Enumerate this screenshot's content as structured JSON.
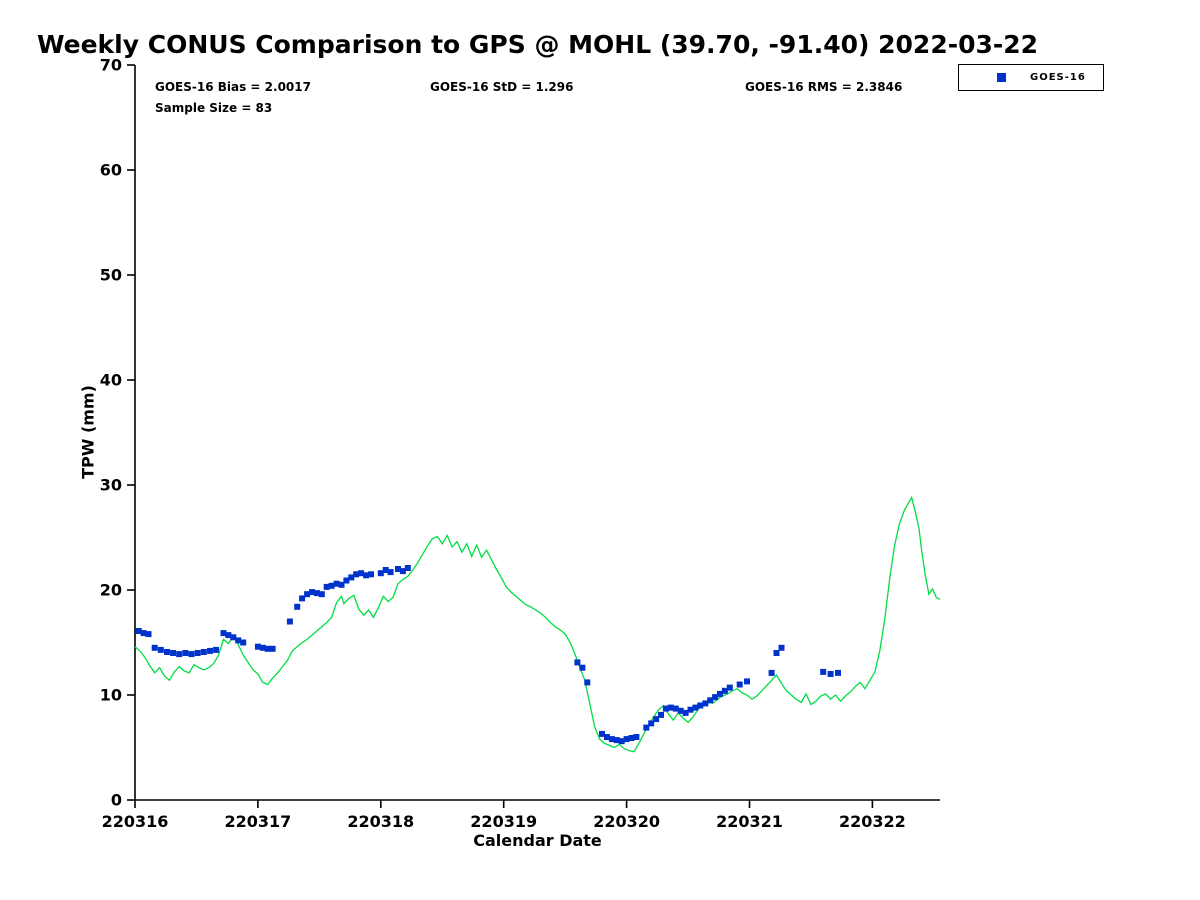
{
  "legend": {
    "items": [
      {
        "label": "GOES-16",
        "marker": "square",
        "color": "#0033cc"
      }
    ]
  },
  "annotations": {
    "bias": "GOES-16 Bias = 2.0017",
    "std": "GOES-16 StD = 1.296",
    "rms": "GOES-16 RMS = 2.3846",
    "sample_size": "Sample Size = 83"
  },
  "chart_data": {
    "type": "scatter",
    "title": "Weekly CONUS Comparison to GPS @ MOHL (39.70, -91.40) 2022-03-22",
    "xlabel": "Calendar Date",
    "ylabel": "TPW (mm)",
    "xlim": [
      220316,
      220322.55
    ],
    "ylim": [
      0,
      70
    ],
    "xticks": [
      220316,
      220317,
      220318,
      220319,
      220320,
      220321,
      220322
    ],
    "xtick_labels": [
      "220316",
      "220317",
      "220318",
      "220319",
      "220320",
      "220321",
      "220322"
    ],
    "yticks": [
      0,
      10,
      20,
      30,
      40,
      50,
      60,
      70
    ],
    "ytick_labels": [
      "0",
      "10",
      "20",
      "30",
      "40",
      "50",
      "60",
      "70"
    ],
    "grid": false,
    "legend_position": "top-right-outside",
    "stats": {
      "bias": 2.0017,
      "std": 1.296,
      "rms": 2.3846,
      "sample_size": 83
    },
    "series": [
      {
        "name": "GPS",
        "mode": "line",
        "color": "#00dd44",
        "points": [
          [
            220316.0,
            14.6
          ],
          [
            220316.04,
            14.2
          ],
          [
            220316.08,
            13.6
          ],
          [
            220316.12,
            12.8
          ],
          [
            220316.16,
            12.1
          ],
          [
            220316.2,
            12.6
          ],
          [
            220316.24,
            11.8
          ],
          [
            220316.28,
            11.4
          ],
          [
            220316.32,
            12.2
          ],
          [
            220316.36,
            12.7
          ],
          [
            220316.4,
            12.3
          ],
          [
            220316.44,
            12.1
          ],
          [
            220316.48,
            12.9
          ],
          [
            220316.52,
            12.6
          ],
          [
            220316.56,
            12.4
          ],
          [
            220316.6,
            12.6
          ],
          [
            220316.64,
            13.0
          ],
          [
            220316.68,
            13.8
          ],
          [
            220316.72,
            15.3
          ],
          [
            220316.76,
            14.9
          ],
          [
            220316.8,
            15.6
          ],
          [
            220316.84,
            14.8
          ],
          [
            220316.88,
            13.8
          ],
          [
            220316.92,
            13.1
          ],
          [
            220316.96,
            12.4
          ],
          [
            220317.0,
            12.0
          ],
          [
            220317.04,
            11.2
          ],
          [
            220317.08,
            11.0
          ],
          [
            220317.12,
            11.6
          ],
          [
            220317.16,
            12.1
          ],
          [
            220317.2,
            12.7
          ],
          [
            220317.24,
            13.3
          ],
          [
            220317.28,
            14.2
          ],
          [
            220317.32,
            14.6
          ],
          [
            220317.36,
            15.0
          ],
          [
            220317.4,
            15.3
          ],
          [
            220317.44,
            15.7
          ],
          [
            220317.48,
            16.1
          ],
          [
            220317.52,
            16.5
          ],
          [
            220317.56,
            16.9
          ],
          [
            220317.6,
            17.4
          ],
          [
            220317.64,
            18.8
          ],
          [
            220317.68,
            19.4
          ],
          [
            220317.7,
            18.7
          ],
          [
            220317.74,
            19.2
          ],
          [
            220317.78,
            19.5
          ],
          [
            220317.82,
            18.2
          ],
          [
            220317.86,
            17.6
          ],
          [
            220317.9,
            18.1
          ],
          [
            220317.94,
            17.4
          ],
          [
            220317.98,
            18.3
          ],
          [
            220318.02,
            19.4
          ],
          [
            220318.06,
            18.9
          ],
          [
            220318.1,
            19.3
          ],
          [
            220318.14,
            20.6
          ],
          [
            220318.18,
            21.0
          ],
          [
            220318.22,
            21.3
          ],
          [
            220318.26,
            21.9
          ],
          [
            220318.3,
            22.6
          ],
          [
            220318.34,
            23.4
          ],
          [
            220318.38,
            24.2
          ],
          [
            220318.42,
            24.9
          ],
          [
            220318.46,
            25.1
          ],
          [
            220318.5,
            24.4
          ],
          [
            220318.54,
            25.2
          ],
          [
            220318.58,
            24.1
          ],
          [
            220318.62,
            24.6
          ],
          [
            220318.66,
            23.6
          ],
          [
            220318.7,
            24.4
          ],
          [
            220318.74,
            23.2
          ],
          [
            220318.78,
            24.3
          ],
          [
            220318.82,
            23.1
          ],
          [
            220318.86,
            23.8
          ],
          [
            220318.9,
            22.9
          ],
          [
            220318.94,
            22.0
          ],
          [
            220318.98,
            21.2
          ],
          [
            220319.02,
            20.3
          ],
          [
            220319.06,
            19.8
          ],
          [
            220319.1,
            19.4
          ],
          [
            220319.14,
            19.0
          ],
          [
            220319.18,
            18.6
          ],
          [
            220319.22,
            18.4
          ],
          [
            220319.26,
            18.1
          ],
          [
            220319.3,
            17.8
          ],
          [
            220319.34,
            17.4
          ],
          [
            220319.38,
            16.9
          ],
          [
            220319.42,
            16.5
          ],
          [
            220319.46,
            16.2
          ],
          [
            220319.5,
            15.8
          ],
          [
            220319.54,
            15.0
          ],
          [
            220319.58,
            13.9
          ],
          [
            220319.62,
            12.6
          ],
          [
            220319.66,
            11.4
          ],
          [
            220319.7,
            9.2
          ],
          [
            220319.74,
            7.0
          ],
          [
            220319.78,
            5.8
          ],
          [
            220319.82,
            5.4
          ],
          [
            220319.86,
            5.2
          ],
          [
            220319.9,
            5.0
          ],
          [
            220319.94,
            5.3
          ],
          [
            220319.98,
            4.9
          ],
          [
            220320.02,
            4.7
          ],
          [
            220320.06,
            4.6
          ],
          [
            220320.1,
            5.4
          ],
          [
            220320.14,
            6.3
          ],
          [
            220320.18,
            7.2
          ],
          [
            220320.22,
            7.9
          ],
          [
            220320.26,
            8.6
          ],
          [
            220320.3,
            9.0
          ],
          [
            220320.34,
            8.2
          ],
          [
            220320.38,
            7.6
          ],
          [
            220320.42,
            8.3
          ],
          [
            220320.46,
            7.8
          ],
          [
            220320.5,
            7.4
          ],
          [
            220320.54,
            7.9
          ],
          [
            220320.58,
            8.6
          ],
          [
            220320.62,
            9.1
          ],
          [
            220320.66,
            9.4
          ],
          [
            220320.7,
            9.2
          ],
          [
            220320.74,
            9.6
          ],
          [
            220320.78,
            9.9
          ],
          [
            220320.82,
            10.1
          ],
          [
            220320.86,
            10.4
          ],
          [
            220320.9,
            10.6
          ],
          [
            220320.94,
            10.2
          ],
          [
            220320.98,
            10.0
          ],
          [
            220321.02,
            9.6
          ],
          [
            220321.06,
            9.9
          ],
          [
            220321.1,
            10.4
          ],
          [
            220321.14,
            10.9
          ],
          [
            220321.18,
            11.4
          ],
          [
            220321.22,
            11.9
          ],
          [
            220321.26,
            11.1
          ],
          [
            220321.3,
            10.4
          ],
          [
            220321.34,
            10.0
          ],
          [
            220321.38,
            9.6
          ],
          [
            220321.42,
            9.3
          ],
          [
            220321.46,
            10.1
          ],
          [
            220321.5,
            9.1
          ],
          [
            220321.54,
            9.4
          ],
          [
            220321.58,
            9.9
          ],
          [
            220321.62,
            10.1
          ],
          [
            220321.66,
            9.6
          ],
          [
            220321.7,
            10.0
          ],
          [
            220321.74,
            9.4
          ],
          [
            220321.78,
            9.9
          ],
          [
            220321.82,
            10.3
          ],
          [
            220321.86,
            10.8
          ],
          [
            220321.9,
            11.2
          ],
          [
            220321.94,
            10.6
          ],
          [
            220321.98,
            11.4
          ],
          [
            220322.02,
            12.2
          ],
          [
            220322.06,
            14.2
          ],
          [
            220322.1,
            17.2
          ],
          [
            220322.14,
            21.0
          ],
          [
            220322.18,
            24.2
          ],
          [
            220322.22,
            26.3
          ],
          [
            220322.26,
            27.6
          ],
          [
            220322.29,
            28.2
          ],
          [
            220322.32,
            28.8
          ],
          [
            220322.35,
            27.4
          ],
          [
            220322.38,
            25.8
          ],
          [
            220322.4,
            23.8
          ],
          [
            220322.43,
            21.4
          ],
          [
            220322.46,
            19.6
          ],
          [
            220322.49,
            20.1
          ],
          [
            220322.52,
            19.3
          ],
          [
            220322.55,
            19.1
          ]
        ]
      },
      {
        "name": "GOES-16",
        "mode": "markers",
        "marker": "square",
        "color": "#0033cc",
        "points": [
          [
            220316.03,
            16.1
          ],
          [
            220316.07,
            15.9
          ],
          [
            220316.11,
            15.8
          ],
          [
            220316.16,
            14.5
          ],
          [
            220316.21,
            14.3
          ],
          [
            220316.26,
            14.1
          ],
          [
            220316.31,
            14.0
          ],
          [
            220316.36,
            13.9
          ],
          [
            220316.41,
            14.0
          ],
          [
            220316.46,
            13.9
          ],
          [
            220316.51,
            14.0
          ],
          [
            220316.56,
            14.1
          ],
          [
            220316.61,
            14.2
          ],
          [
            220316.66,
            14.3
          ],
          [
            220316.72,
            15.9
          ],
          [
            220316.76,
            15.7
          ],
          [
            220316.8,
            15.5
          ],
          [
            220316.84,
            15.2
          ],
          [
            220316.88,
            15.0
          ],
          [
            220317.0,
            14.6
          ],
          [
            220317.04,
            14.5
          ],
          [
            220317.08,
            14.4
          ],
          [
            220317.12,
            14.4
          ],
          [
            220317.26,
            17.0
          ],
          [
            220317.32,
            18.4
          ],
          [
            220317.36,
            19.2
          ],
          [
            220317.4,
            19.6
          ],
          [
            220317.44,
            19.8
          ],
          [
            220317.48,
            19.7
          ],
          [
            220317.52,
            19.6
          ],
          [
            220317.56,
            20.3
          ],
          [
            220317.6,
            20.4
          ],
          [
            220317.64,
            20.6
          ],
          [
            220317.68,
            20.5
          ],
          [
            220317.72,
            20.9
          ],
          [
            220317.76,
            21.2
          ],
          [
            220317.8,
            21.5
          ],
          [
            220317.84,
            21.6
          ],
          [
            220317.88,
            21.4
          ],
          [
            220317.92,
            21.5
          ],
          [
            220318.0,
            21.6
          ],
          [
            220318.04,
            21.9
          ],
          [
            220318.08,
            21.7
          ],
          [
            220318.14,
            22.0
          ],
          [
            220318.18,
            21.8
          ],
          [
            220318.22,
            22.1
          ],
          [
            220319.6,
            13.1
          ],
          [
            220319.64,
            12.6
          ],
          [
            220319.68,
            11.2
          ],
          [
            220319.8,
            6.3
          ],
          [
            220319.84,
            6.0
          ],
          [
            220319.88,
            5.8
          ],
          [
            220319.92,
            5.7
          ],
          [
            220319.96,
            5.6
          ],
          [
            220320.0,
            5.8
          ],
          [
            220320.04,
            5.9
          ],
          [
            220320.08,
            6.0
          ],
          [
            220320.16,
            6.9
          ],
          [
            220320.2,
            7.3
          ],
          [
            220320.24,
            7.7
          ],
          [
            220320.28,
            8.1
          ],
          [
            220320.32,
            8.7
          ],
          [
            220320.36,
            8.8
          ],
          [
            220320.4,
            8.7
          ],
          [
            220320.44,
            8.5
          ],
          [
            220320.48,
            8.3
          ],
          [
            220320.52,
            8.6
          ],
          [
            220320.56,
            8.8
          ],
          [
            220320.6,
            9.0
          ],
          [
            220320.64,
            9.2
          ],
          [
            220320.68,
            9.5
          ],
          [
            220320.72,
            9.8
          ],
          [
            220320.76,
            10.1
          ],
          [
            220320.8,
            10.4
          ],
          [
            220320.84,
            10.7
          ],
          [
            220320.92,
            11.0
          ],
          [
            220320.98,
            11.3
          ],
          [
            220321.18,
            12.1
          ],
          [
            220321.22,
            14.0
          ],
          [
            220321.26,
            14.5
          ],
          [
            220321.6,
            12.2
          ],
          [
            220321.66,
            12.0
          ],
          [
            220321.72,
            12.1
          ]
        ]
      }
    ]
  }
}
